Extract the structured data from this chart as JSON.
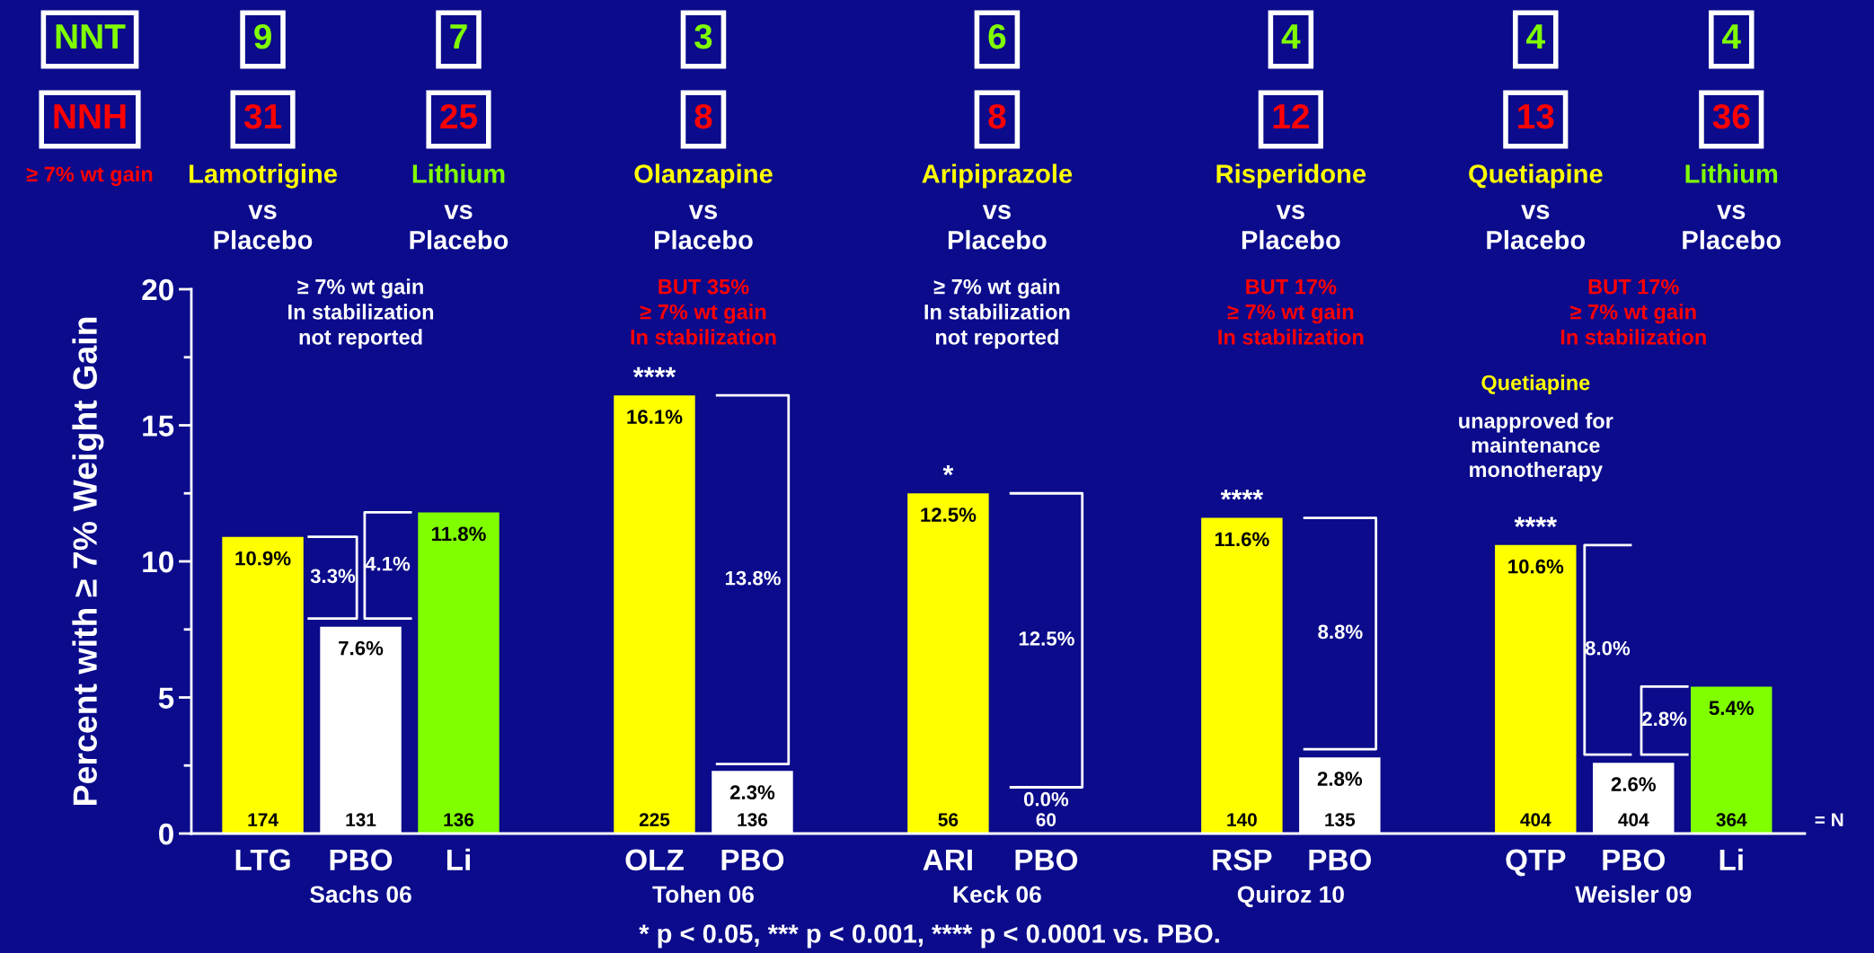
{
  "chart_data": {
    "type": "bar",
    "ylabel": "Percent with ≥ 7% Weight Gain",
    "categories": [
      "LTG",
      "PBO",
      "Li",
      null,
      "OLZ",
      "PBO",
      null,
      "ARI",
      "PBO",
      null,
      "RSP",
      "PBO",
      null,
      "QTP",
      "PBO",
      "Li"
    ],
    "values": [
      10.9,
      7.6,
      11.8,
      null,
      16.1,
      2.3,
      null,
      12.5,
      0.0,
      null,
      11.6,
      2.8,
      null,
      10.6,
      2.6,
      5.4
    ],
    "colors": [
      "#ffff00",
      "#ffffff",
      "#80ff00",
      null,
      "#ffff00",
      "#ffffff",
      null,
      "#ffff00",
      "#ffffff",
      null,
      "#ffff00",
      "#ffffff",
      null,
      "#ffff00",
      "#ffffff",
      "#80ff00"
    ],
    "value_labels": [
      "10.9%",
      "7.6%",
      "11.8%",
      null,
      "16.1%",
      "2.3%",
      null,
      "12.5%",
      "0.0%",
      null,
      "11.6%",
      "2.8%",
      null,
      "10.6%",
      "2.6%",
      "5.4%"
    ],
    "ylim": [
      0,
      20
    ],
    "yticks": [
      0,
      5,
      10,
      15,
      20
    ],
    "grid": false,
    "annotations": [
      "NNT",
      "NNH",
      "≥ 7% wt gain",
      "9",
      "7",
      "3",
      "6",
      "4",
      "4",
      "4",
      "31",
      "25",
      "8",
      "8",
      "12",
      "13",
      "36",
      "Lamotrigine",
      "Lithium",
      "Olanzapine",
      "Aripiprazole",
      "Risperidone",
      "Quetiapine",
      "Lithium",
      "vs\nPlacebo",
      "vs\nPlacebo",
      "vs\nPlacebo",
      "vs\nPlacebo",
      "vs\nPlacebo",
      "vs\nPlacebo",
      "vs\nPlacebo",
      "≥ 7% wt gain\nIn stabilization\nnot reported",
      "BUT 35%\n≥ 7% wt gain\nIn stabilization",
      "≥ 7% wt gain\nIn stabilization\nnot reported",
      "BUT 17%\n≥ 7% wt gain\nIn stabilization",
      "BUT 17%\n≥ 7% wt gain\nIn stabilization",
      "Quetiapine",
      "unapproved for\nmaintenance\nmonotherapy",
      "****",
      "*",
      "****",
      "****",
      "3.3%",
      "4.1%",
      "13.8%",
      "12.5%",
      "8.8%",
      "8.0%",
      "2.8%",
      "174",
      "131",
      "136",
      "225",
      "136",
      "56",
      "60",
      "140",
      "135",
      "404",
      "404",
      "364",
      "= N",
      "Sachs 06",
      "Tohen 06",
      "Keck 06",
      "Quiroz 10",
      "Weisler 09",
      "* p < 0.05, *** p < 0.001, **** p < 0.0001 vs. PBO."
    ]
  }
}
